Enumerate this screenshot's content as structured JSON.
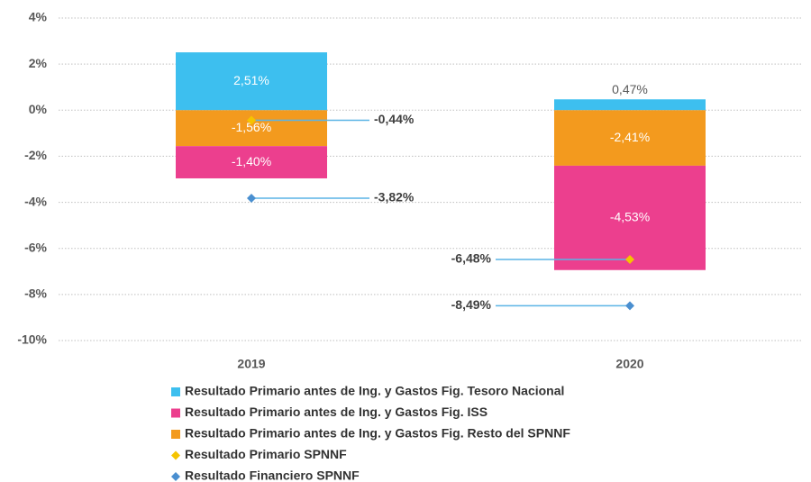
{
  "chart_data": {
    "type": "bar",
    "categories": [
      "2019",
      "2020"
    ],
    "ylim": [
      -10,
      4
    ],
    "yticks": [
      {
        "value": 4,
        "label": "4%"
      },
      {
        "value": 2,
        "label": "2%"
      },
      {
        "value": 0,
        "label": "0%"
      },
      {
        "value": -2,
        "label": "-2%"
      },
      {
        "value": -4,
        "label": "-4%"
      },
      {
        "value": -6,
        "label": "-6%"
      },
      {
        "value": -8,
        "label": "-8%"
      },
      {
        "value": -10,
        "label": "-10%"
      }
    ],
    "grid": true,
    "series": [
      {
        "name": "Resultado Primario antes de Ing. y Gastos Fig. Tesoro Nacional",
        "type": "bar",
        "color": "#3dbfef",
        "values": [
          2.51,
          0.47
        ],
        "value_labels": [
          "2,51%",
          "0,47%"
        ]
      },
      {
        "name": "Resultado Primario antes de Ing. y Gastos Fig. ISS",
        "type": "bar",
        "color": "#ec3f8e",
        "values": [
          -1.4,
          -4.53
        ],
        "value_labels": [
          "-1,40%",
          "-4,53%"
        ]
      },
      {
        "name": "Resultado Primario antes de Ing. y Gastos Fig. Resto del SPNNF",
        "type": "bar",
        "color": "#f39a1e",
        "values": [
          -1.56,
          -2.41
        ],
        "value_labels": [
          "-1,56%",
          "-2,41%"
        ]
      },
      {
        "name": "Resultado Primario SPNNF",
        "type": "point",
        "color": "#f5c400",
        "values": [
          -0.44,
          -6.48
        ],
        "value_labels": [
          "-0,44%",
          "-6,48%"
        ]
      },
      {
        "name": "Resultado Financiero SPNNF",
        "type": "point",
        "color": "#4a8fd0",
        "values": [
          -3.82,
          -8.49
        ],
        "value_labels": [
          "-3,82%",
          "-8,49%"
        ]
      }
    ]
  }
}
